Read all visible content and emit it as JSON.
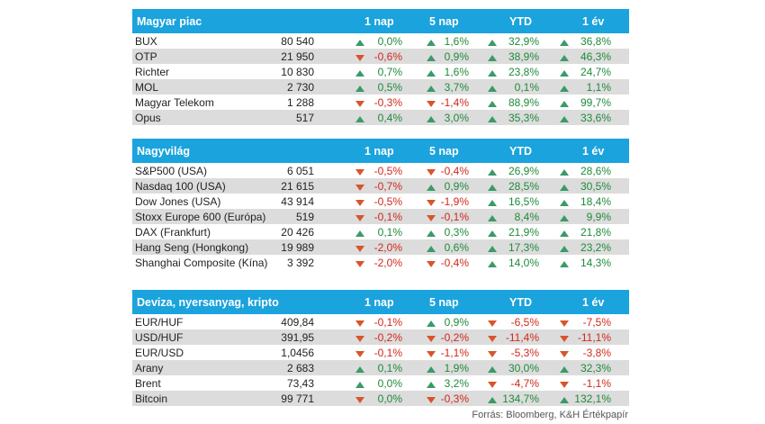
{
  "headers": {
    "d1": "1 nap",
    "d5": "5 nap",
    "ytd": "YTD",
    "y1": "1 év"
  },
  "colors": {
    "header_bg": "#1aa3dc",
    "up": "#3a9a6a",
    "down": "#d9542c",
    "pos_text": "#1f8a3a",
    "neg_text": "#d0281c"
  },
  "sections": [
    {
      "title": "Magyar piac",
      "rows": [
        {
          "name": "BUX",
          "value": "80 540",
          "d1": "0,0%",
          "d5": "1,6%",
          "ytd": "32,9%",
          "y1": "36,8%",
          "dir": [
            "up",
            "up",
            "up",
            "up"
          ]
        },
        {
          "name": "OTP",
          "value": "21 950",
          "d1": "-0,6%",
          "d5": "0,9%",
          "ytd": "38,9%",
          "y1": "46,3%",
          "dir": [
            "down",
            "up",
            "up",
            "up"
          ]
        },
        {
          "name": "Richter",
          "value": "10 830",
          "d1": "0,7%",
          "d5": "1,6%",
          "ytd": "23,8%",
          "y1": "24,7%",
          "dir": [
            "up",
            "up",
            "up",
            "up"
          ]
        },
        {
          "name": "MOL",
          "value": "2 730",
          "d1": "0,5%",
          "d5": "3,7%",
          "ytd": "0,1%",
          "y1": "1,1%",
          "dir": [
            "up",
            "up",
            "up",
            "up"
          ]
        },
        {
          "name": "Magyar Telekom",
          "value": "1 288",
          "d1": "-0,3%",
          "d5": "-1,4%",
          "ytd": "88,9%",
          "y1": "99,7%",
          "dir": [
            "down",
            "down",
            "up",
            "up"
          ]
        },
        {
          "name": "Opus",
          "value": "517",
          "d1": "0,4%",
          "d5": "3,0%",
          "ytd": "35,3%",
          "y1": "33,6%",
          "dir": [
            "up",
            "up",
            "up",
            "up"
          ]
        }
      ]
    },
    {
      "title": "Nagyvilág",
      "rows": [
        {
          "name": "S&P500 (USA)",
          "value": "6 051",
          "d1": "-0,5%",
          "d5": "-0,4%",
          "ytd": "26,9%",
          "y1": "28,6%",
          "dir": [
            "down",
            "down",
            "up",
            "up"
          ]
        },
        {
          "name": "Nasdaq 100 (USA)",
          "value": "21 615",
          "d1": "-0,7%",
          "d5": "0,9%",
          "ytd": "28,5%",
          "y1": "30,5%",
          "dir": [
            "down",
            "up",
            "up",
            "up"
          ]
        },
        {
          "name": "Dow Jones (USA)",
          "value": "43 914",
          "d1": "-0,5%",
          "d5": "-1,9%",
          "ytd": "16,5%",
          "y1": "18,4%",
          "dir": [
            "down",
            "down",
            "up",
            "up"
          ]
        },
        {
          "name": "Stoxx Europe 600 (Európa)",
          "value": "519",
          "d1": "-0,1%",
          "d5": "-0,1%",
          "ytd": "8,4%",
          "y1": "9,9%",
          "dir": [
            "down",
            "down",
            "up",
            "up"
          ]
        },
        {
          "name": "DAX (Frankfurt)",
          "value": "20 426",
          "d1": "0,1%",
          "d5": "0,3%",
          "ytd": "21,9%",
          "y1": "21,8%",
          "dir": [
            "up",
            "up",
            "up",
            "up"
          ]
        },
        {
          "name": "Hang Seng (Hongkong)",
          "value": "19 989",
          "d1": "-2,0%",
          "d5": "0,6%",
          "ytd": "17,3%",
          "y1": "23,2%",
          "dir": [
            "down",
            "up",
            "up",
            "up"
          ]
        },
        {
          "name": "Shanghai Composite (Kína)",
          "value": "3 392",
          "d1": "-2,0%",
          "d5": "-0,4%",
          "ytd": "14,0%",
          "y1": "14,3%",
          "dir": [
            "down",
            "down",
            "up",
            "up"
          ]
        }
      ]
    },
    {
      "title": "Deviza, nyersanyag, kripto",
      "rows": [
        {
          "name": "EUR/HUF",
          "value": "409,84",
          "d1": "-0,1%",
          "d5": "0,9%",
          "ytd": "-6,5%",
          "y1": "-7,5%",
          "dir": [
            "down",
            "up",
            "down",
            "down"
          ]
        },
        {
          "name": "USD/HUF",
          "value": "391,95",
          "d1": "-0,2%",
          "d5": "-0,2%",
          "ytd": "-11,4%",
          "y1": "-11,1%",
          "dir": [
            "down",
            "down",
            "down",
            "down"
          ]
        },
        {
          "name": "EUR/USD",
          "value": "1,0456",
          "d1": "-0,1%",
          "d5": "-1,1%",
          "ytd": "-5,3%",
          "y1": "-3,8%",
          "dir": [
            "down",
            "down",
            "down",
            "down"
          ]
        },
        {
          "name": "Arany",
          "value": "2 683",
          "d1": "0,1%",
          "d5": "1,9%",
          "ytd": "30,0%",
          "y1": "32,3%",
          "dir": [
            "up",
            "up",
            "up",
            "up"
          ]
        },
        {
          "name": "Brent",
          "value": "73,43",
          "d1": "0,0%",
          "d5": "3,2%",
          "ytd": "-4,7%",
          "y1": "-1,1%",
          "dir": [
            "up",
            "up",
            "down",
            "down"
          ]
        },
        {
          "name": "Bitcoin",
          "value": "99 771",
          "d1": "0,0%",
          "d5": "-0,3%",
          "ytd": "134,7%",
          "y1": "132,1%",
          "dir": [
            "down",
            "down",
            "up",
            "up"
          ]
        }
      ]
    }
  ],
  "source": "Forrás: Bloomberg, K&H Értékpapír"
}
